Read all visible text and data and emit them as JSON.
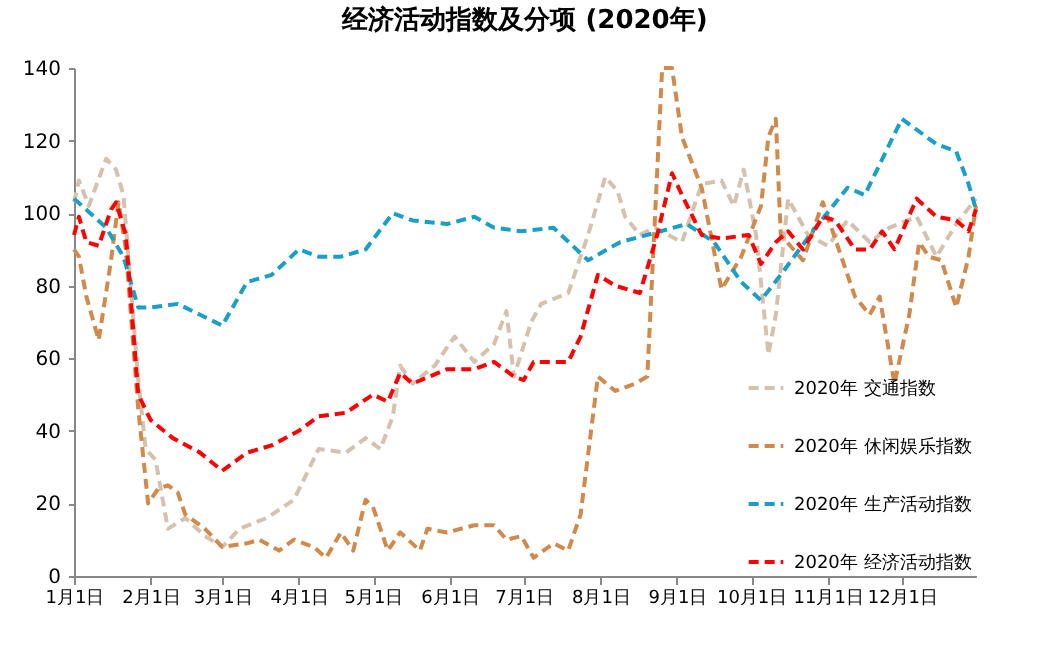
{
  "chart_data": {
    "type": "line",
    "title": "经济活动指数及分项 (2020年)",
    "line_style": "dashed",
    "marker": "none",
    "grid": false,
    "legend": "bottom right",
    "xlim": [
      "2020-01-01",
      "2020-12-31"
    ],
    "xticks": [
      {
        "value": "2020-01-01",
        "label": "1月1日"
      },
      {
        "value": "2020-02-01",
        "label": "2月1日"
      },
      {
        "value": "2020-03-01",
        "label": "3月1日"
      },
      {
        "value": "2020-04-01",
        "label": "4月1日"
      },
      {
        "value": "2020-05-01",
        "label": "5月1日"
      },
      {
        "value": "2020-06-01",
        "label": "6月1日"
      },
      {
        "value": "2020-07-01",
        "label": "7月1日"
      },
      {
        "value": "2020-08-01",
        "label": "8月1日"
      },
      {
        "value": "2020-09-01",
        "label": "9月1日"
      },
      {
        "value": "2020-10-01",
        "label": "10月1日"
      },
      {
        "value": "2020-11-01",
        "label": "11月1日"
      },
      {
        "value": "2020-12-01",
        "label": "12月1日"
      }
    ],
    "ylim": [
      0,
      140
    ],
    "yticks": [
      0,
      20,
      40,
      60,
      80,
      100,
      120,
      140
    ],
    "series": [
      {
        "name": "2020年 交通指数",
        "color": "#d5c2ae",
        "x": [
          "2020-01-01",
          "2020-01-03",
          "2020-01-07",
          "2020-01-14",
          "2020-01-18",
          "2020-01-21",
          "2020-01-27",
          "2020-01-30",
          "2020-02-03",
          "2020-02-08",
          "2020-02-15",
          "2020-02-23",
          "2020-03-01",
          "2020-03-08",
          "2020-03-19",
          "2020-03-30",
          "2020-04-09",
          "2020-04-20",
          "2020-04-28",
          "2020-05-04",
          "2020-05-09",
          "2020-05-12",
          "2020-05-17",
          "2020-05-26",
          "2020-06-03",
          "2020-06-11",
          "2020-06-19",
          "2020-06-24",
          "2020-06-27",
          "2020-07-04",
          "2020-07-08",
          "2020-07-19",
          "2020-07-27",
          "2020-08-03",
          "2020-08-08",
          "2020-08-11",
          "2020-08-17",
          "2020-08-23",
          "2020-09-03",
          "2020-09-11",
          "2020-09-19",
          "2020-09-24",
          "2020-09-28",
          "2020-10-03",
          "2020-10-08",
          "2020-10-11",
          "2020-10-16",
          "2020-10-24",
          "2020-11-01",
          "2020-11-09",
          "2020-11-18",
          "2020-11-26",
          "2020-12-07",
          "2020-12-15",
          "2020-12-23",
          "2020-12-31"
        ],
        "values": [
          103,
          109,
          102,
          115,
          112,
          105,
          54,
          35,
          32,
          13,
          16,
          11,
          8,
          13,
          16,
          21,
          35,
          34,
          38,
          35,
          44,
          58,
          53,
          58,
          66,
          59,
          64,
          73,
          55,
          70,
          75,
          78,
          94,
          110,
          106,
          99,
          94,
          96,
          92,
          108,
          109,
          102,
          112,
          94,
          61,
          72,
          104,
          94,
          91,
          98,
          92,
          96,
          99,
          88,
          97,
          104
        ]
      },
      {
        "name": "2020年 休闲娱乐指数",
        "color": "#cf8a4c",
        "x": [
          "2020-01-01",
          "2020-01-03",
          "2020-01-06",
          "2020-01-11",
          "2020-01-16",
          "2020-01-19",
          "2020-01-22",
          "2020-01-27",
          "2020-01-31",
          "2020-02-04",
          "2020-02-08",
          "2020-02-12",
          "2020-02-15",
          "2020-02-23",
          "2020-03-01",
          "2020-03-11",
          "2020-03-16",
          "2020-03-24",
          "2020-03-30",
          "2020-04-07",
          "2020-04-12",
          "2020-04-18",
          "2020-04-23",
          "2020-04-28",
          "2020-05-01",
          "2020-05-07",
          "2020-05-12",
          "2020-05-20",
          "2020-05-23",
          "2020-05-31",
          "2020-06-11",
          "2020-06-19",
          "2020-06-24",
          "2020-06-30",
          "2020-07-05",
          "2020-07-13",
          "2020-07-19",
          "2020-07-24",
          "2020-07-31",
          "2020-08-07",
          "2020-08-15",
          "2020-08-20",
          "2020-08-26",
          "2020-08-30",
          "2020-09-03",
          "2020-09-11",
          "2020-09-19",
          "2020-09-27",
          "2020-10-05",
          "2020-10-08",
          "2020-10-11",
          "2020-10-13",
          "2020-10-22",
          "2020-10-30",
          "2020-11-07",
          "2020-11-12",
          "2020-11-18",
          "2020-11-22",
          "2020-11-28",
          "2020-12-04",
          "2020-12-08",
          "2020-12-12",
          "2020-12-17",
          "2020-12-23",
          "2020-12-28",
          "2020-12-31"
        ],
        "values": [
          90,
          88,
          77,
          65,
          87,
          103,
          90,
          46,
          20,
          24,
          25,
          23,
          17,
          13,
          8,
          9,
          10,
          7,
          10,
          8,
          5,
          12,
          7,
          21,
          19,
          7,
          12,
          7,
          13,
          12,
          14,
          14,
          10,
          11,
          5,
          9,
          7,
          17,
          55,
          51,
          53,
          55,
          140,
          140,
          121,
          107,
          79,
          88,
          102,
          121,
          126,
          94,
          87,
          103,
          87,
          77,
          72,
          77,
          53,
          72,
          92,
          88,
          87,
          74,
          88,
          102
        ]
      },
      {
        "name": "2020年 生产活动指数",
        "color": "#1a9fc6",
        "x": [
          "2020-01-01",
          "2020-01-14",
          "2020-01-21",
          "2020-01-27",
          "2020-02-01",
          "2020-02-12",
          "2020-02-21",
          "2020-03-01",
          "2020-03-11",
          "2020-03-21",
          "2020-04-01",
          "2020-04-09",
          "2020-04-18",
          "2020-04-28",
          "2020-05-09",
          "2020-05-17",
          "2020-05-31",
          "2020-06-11",
          "2020-06-19",
          "2020-06-30",
          "2020-07-13",
          "2020-07-27",
          "2020-08-09",
          "2020-08-20",
          "2020-09-05",
          "2020-09-16",
          "2020-09-27",
          "2020-10-05",
          "2020-10-13",
          "2020-10-27",
          "2020-11-09",
          "2020-11-16",
          "2020-12-01",
          "2020-12-15",
          "2020-12-23",
          "2020-12-28",
          "2020-12-31"
        ],
        "values": [
          104,
          96,
          88,
          74,
          74,
          75,
          72,
          69,
          81,
          83,
          90,
          88,
          88,
          90,
          100,
          98,
          97,
          99,
          96,
          95,
          96,
          87,
          92,
          94,
          97,
          92,
          81,
          76,
          83,
          96,
          107,
          105,
          126,
          119,
          117,
          108,
          101
        ]
      },
      {
        "name": "2020年 经济活动指数",
        "color": "#ff0000",
        "x": [
          "2020-01-01",
          "2020-01-03",
          "2020-01-06",
          "2020-01-11",
          "2020-01-16",
          "2020-01-18",
          "2020-01-22",
          "2020-01-27",
          "2020-02-01",
          "2020-02-10",
          "2020-02-21",
          "2020-03-01",
          "2020-03-11",
          "2020-03-21",
          "2020-04-01",
          "2020-04-09",
          "2020-04-20",
          "2020-05-01",
          "2020-05-07",
          "2020-05-12",
          "2020-05-17",
          "2020-05-31",
          "2020-06-11",
          "2020-06-19",
          "2020-06-27",
          "2020-07-01",
          "2020-07-05",
          "2020-07-19",
          "2020-07-24",
          "2020-07-31",
          "2020-08-07",
          "2020-08-17",
          "2020-08-24",
          "2020-08-30",
          "2020-09-03",
          "2020-09-11",
          "2020-09-19",
          "2020-09-30",
          "2020-10-05",
          "2020-10-11",
          "2020-10-16",
          "2020-10-22",
          "2020-10-30",
          "2020-11-04",
          "2020-11-12",
          "2020-11-18",
          "2020-11-23",
          "2020-11-28",
          "2020-12-07",
          "2020-12-15",
          "2020-12-23",
          "2020-12-28",
          "2020-12-31"
        ],
        "values": [
          94,
          99,
          92,
          91,
          101,
          103,
          94,
          50,
          43,
          38,
          34,
          29,
          34,
          36,
          40,
          44,
          45,
          50,
          48,
          56,
          53,
          57,
          57,
          59,
          55,
          54,
          59,
          59,
          66,
          83,
          80,
          78,
          94,
          111,
          105,
          94,
          93,
          94,
          86,
          92,
          95,
          90,
          99,
          98,
          90,
          90,
          95,
          90,
          104,
          99,
          98,
          95,
          101
        ]
      }
    ]
  }
}
